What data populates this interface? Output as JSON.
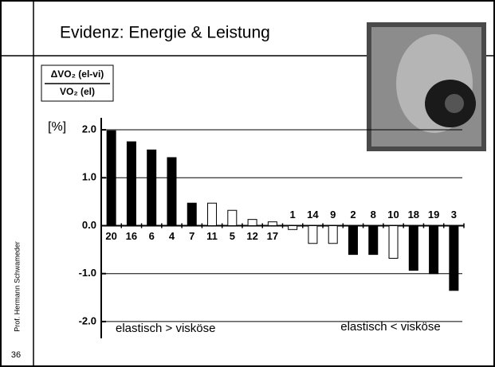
{
  "slide": {
    "title": "Evidenz: Energie & Leistung",
    "author": "Prof. Hermann Schwameder",
    "page": "36"
  },
  "chart_data": {
    "type": "bar",
    "ylabel_top": "ΔVO₂ (el-vi)",
    "ylabel_bottom": "VO₂ (el)",
    "unit": "[%]",
    "categories": [
      "20",
      "16",
      "6",
      "4",
      "7",
      "11",
      "5",
      "12",
      "17",
      "1",
      "14",
      "9",
      "2",
      "8",
      "10",
      "18",
      "19",
      "3"
    ],
    "values": [
      1.98,
      1.75,
      1.58,
      1.42,
      0.47,
      0.47,
      0.32,
      0.13,
      0.08,
      -0.08,
      -0.37,
      -0.37,
      -0.6,
      -0.6,
      -0.68,
      -0.93,
      -1.0,
      -1.35
    ],
    "colors": [
      "#000000",
      "#000000",
      "#000000",
      "#000000",
      "#000000",
      "#ffffff",
      "#ffffff",
      "#ffffff",
      "#ffffff",
      "#ffffff",
      "#ffffff",
      "#ffffff",
      "#000000",
      "#000000",
      "#ffffff",
      "#000000",
      "#000000",
      "#000000"
    ],
    "ylim": [
      -2.35,
      2.25
    ],
    "yticks": [
      {
        "value": 2,
        "label": "2.0"
      },
      {
        "value": 1,
        "label": "1.0"
      },
      {
        "value": 0,
        "label": "0.0"
      },
      {
        "value": -1,
        "label": "-1.0"
      },
      {
        "value": -2,
        "label": "-2.0"
      }
    ],
    "grid": true,
    "annotations": [
      "elastisch > visköse",
      "elastisch < visköse"
    ]
  }
}
